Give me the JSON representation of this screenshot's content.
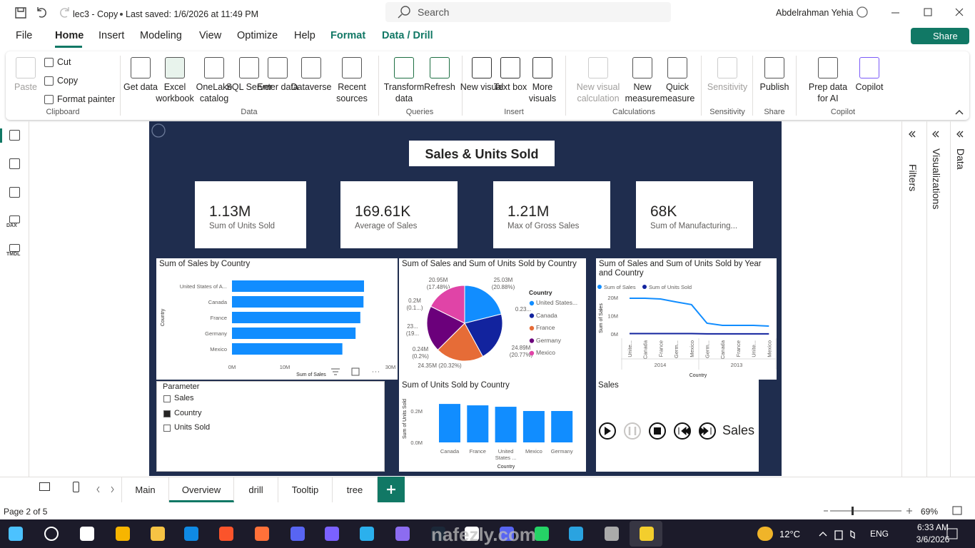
{
  "titlebar": {
    "document": "lec3 - Copy",
    "status": "Last saved: 1/6/2026 at 11:49 PM",
    "search": "Search",
    "user": "Abdelrahman Yehia"
  },
  "menu": {
    "tabs": [
      "File",
      "Home",
      "Insert",
      "Modeling",
      "View",
      "Optimize",
      "Help",
      "Format",
      "Data / Drill"
    ],
    "active": "Home",
    "share": "Share"
  },
  "ribbon": {
    "groups": [
      {
        "name": "Clipboard",
        "buttons": [
          "Paste",
          "Cut",
          "Copy",
          "Format painter"
        ]
      },
      {
        "name": "Data",
        "buttons": [
          "Get data",
          "Excel workbook",
          "OneLake catalog",
          "SQL Server",
          "Enter data",
          "Dataverse",
          "Recent sources"
        ]
      },
      {
        "name": "Queries",
        "buttons": [
          "Transform data",
          "Refresh"
        ]
      },
      {
        "name": "Insert",
        "buttons": [
          "New visual",
          "Text box",
          "More visuals"
        ]
      },
      {
        "name": "Calculations",
        "buttons": [
          "New visual calculation",
          "New measure",
          "Quick measure"
        ]
      },
      {
        "name": "Sensitivity",
        "buttons": [
          "Sensitivity"
        ]
      },
      {
        "name": "Share",
        "buttons": [
          "Publish"
        ]
      },
      {
        "name": "Copilot",
        "buttons": [
          "Prep data for AI",
          "Copilot"
        ]
      }
    ]
  },
  "nav": [
    "DAX",
    "TMDL"
  ],
  "panes": [
    "Filters",
    "Visualizations",
    "Data"
  ],
  "report": {
    "title": "Sales & Units Sold",
    "cards": [
      {
        "value": "1.13M",
        "label": "Sum of Units Sold"
      },
      {
        "value": "169.61K",
        "label": "Average of Sales"
      },
      {
        "value": "1.21M",
        "label": "Max of Gross Sales"
      },
      {
        "value": "68K",
        "label": "Sum of Manufacturing..."
      }
    ],
    "slicer": {
      "title": "Parameter",
      "options": [
        "Sales",
        "Country",
        "Units Sold"
      ],
      "selected": [
        false,
        true,
        false
      ]
    },
    "play_axis": {
      "title": "Sales",
      "label": "Sales"
    }
  },
  "chart_data": [
    {
      "type": "bar",
      "horizontal": true,
      "title": "Sum of Sales by Country",
      "categories": [
        "United States of A...",
        "Canada",
        "France",
        "Germany",
        "Mexico"
      ],
      "values": [
        25.0,
        24.9,
        24.3,
        23.4,
        20.9
      ],
      "color": "#118dff",
      "xlim": [
        0,
        30
      ],
      "xticks": [
        {
          "value": 0,
          "label": "0M"
        },
        {
          "value": 10,
          "label": "10M"
        },
        {
          "value": 30,
          "label": "30M"
        }
      ],
      "x_label": "Sum of Sales",
      "y_label": "Country"
    },
    {
      "type": "pie",
      "title": "Sum of Sales and Sum of Units Sold by Country",
      "legend_title": "Country",
      "categories": [
        "United States...",
        "Canada",
        "France",
        "Germany",
        "Mexico"
      ],
      "values": [
        25.03,
        24.89,
        24.35,
        23.5,
        20.95
      ],
      "value_labels": [
        "25.03M (20.88%)",
        "24.89M (20.77%)",
        "24.35M (20.32%)",
        "23... (19...",
        "20.95M (17.48%)"
      ],
      "colors": [
        "#118dff",
        "#12239e",
        "#e66c37",
        "#6b007b",
        "#e044a7"
      ],
      "annotations": [
        "0.23...",
        "0.24M (0.2%)",
        "0.2M (0.1...)"
      ]
    },
    {
      "type": "line",
      "title": "Sum of Sales and Sum of Units Sold by Year and Country",
      "categories": [
        "Unite...",
        "Canada",
        "France",
        "Germ...",
        "Mexico",
        "Germ...",
        "Canada",
        "France",
        "Unite...",
        "Mexico"
      ],
      "x_groups": [
        "2014",
        "2013"
      ],
      "series": [
        {
          "name": "Sum of Sales",
          "color": "#118dff",
          "values": [
            19.6,
            19.6,
            19.2,
            17.6,
            16.1,
            5.9,
            4.7,
            4.7,
            4.7,
            4.3
          ]
        },
        {
          "name": "Sum of Units Sold",
          "color": "#12239e",
          "values": [
            0.2,
            0.2,
            0.2,
            0.2,
            0.2,
            0.05,
            0.05,
            0.05,
            0.05,
            0.04
          ]
        }
      ],
      "ylim": [
        0,
        20
      ],
      "yticks": [
        {
          "value": 0,
          "label": "0M"
        },
        {
          "value": 10,
          "label": "10M"
        },
        {
          "value": 20,
          "label": "20M"
        }
      ],
      "x_label": "Country",
      "y_label": "Sum of Sales"
    },
    {
      "type": "bar",
      "horizontal": false,
      "title": "Sum of Units Sold by Country",
      "categories": [
        "Canada",
        "France",
        "United States ...",
        "Mexico",
        "Germany"
      ],
      "values": [
        0.245,
        0.236,
        0.227,
        0.2,
        0.2
      ],
      "color": "#118dff",
      "ylim": [
        0,
        0.26
      ],
      "yticks": [
        {
          "value": 0,
          "label": "0.0M"
        },
        {
          "value": 0.2,
          "label": "0.2M"
        }
      ],
      "x_label": "Country",
      "y_label": "Sum of Units Sold"
    }
  ],
  "pages": {
    "tabs": [
      "Main",
      "Overview",
      "drill",
      "Tooltip",
      "tree"
    ],
    "active": "Overview",
    "status": "Page 2 of 5",
    "zoom": "69%"
  },
  "taskbar": {
    "temperature": "12°C",
    "language": "ENG",
    "time": "6:33 AM",
    "date": "3/6/2026"
  },
  "watermark": "nafezly.com"
}
